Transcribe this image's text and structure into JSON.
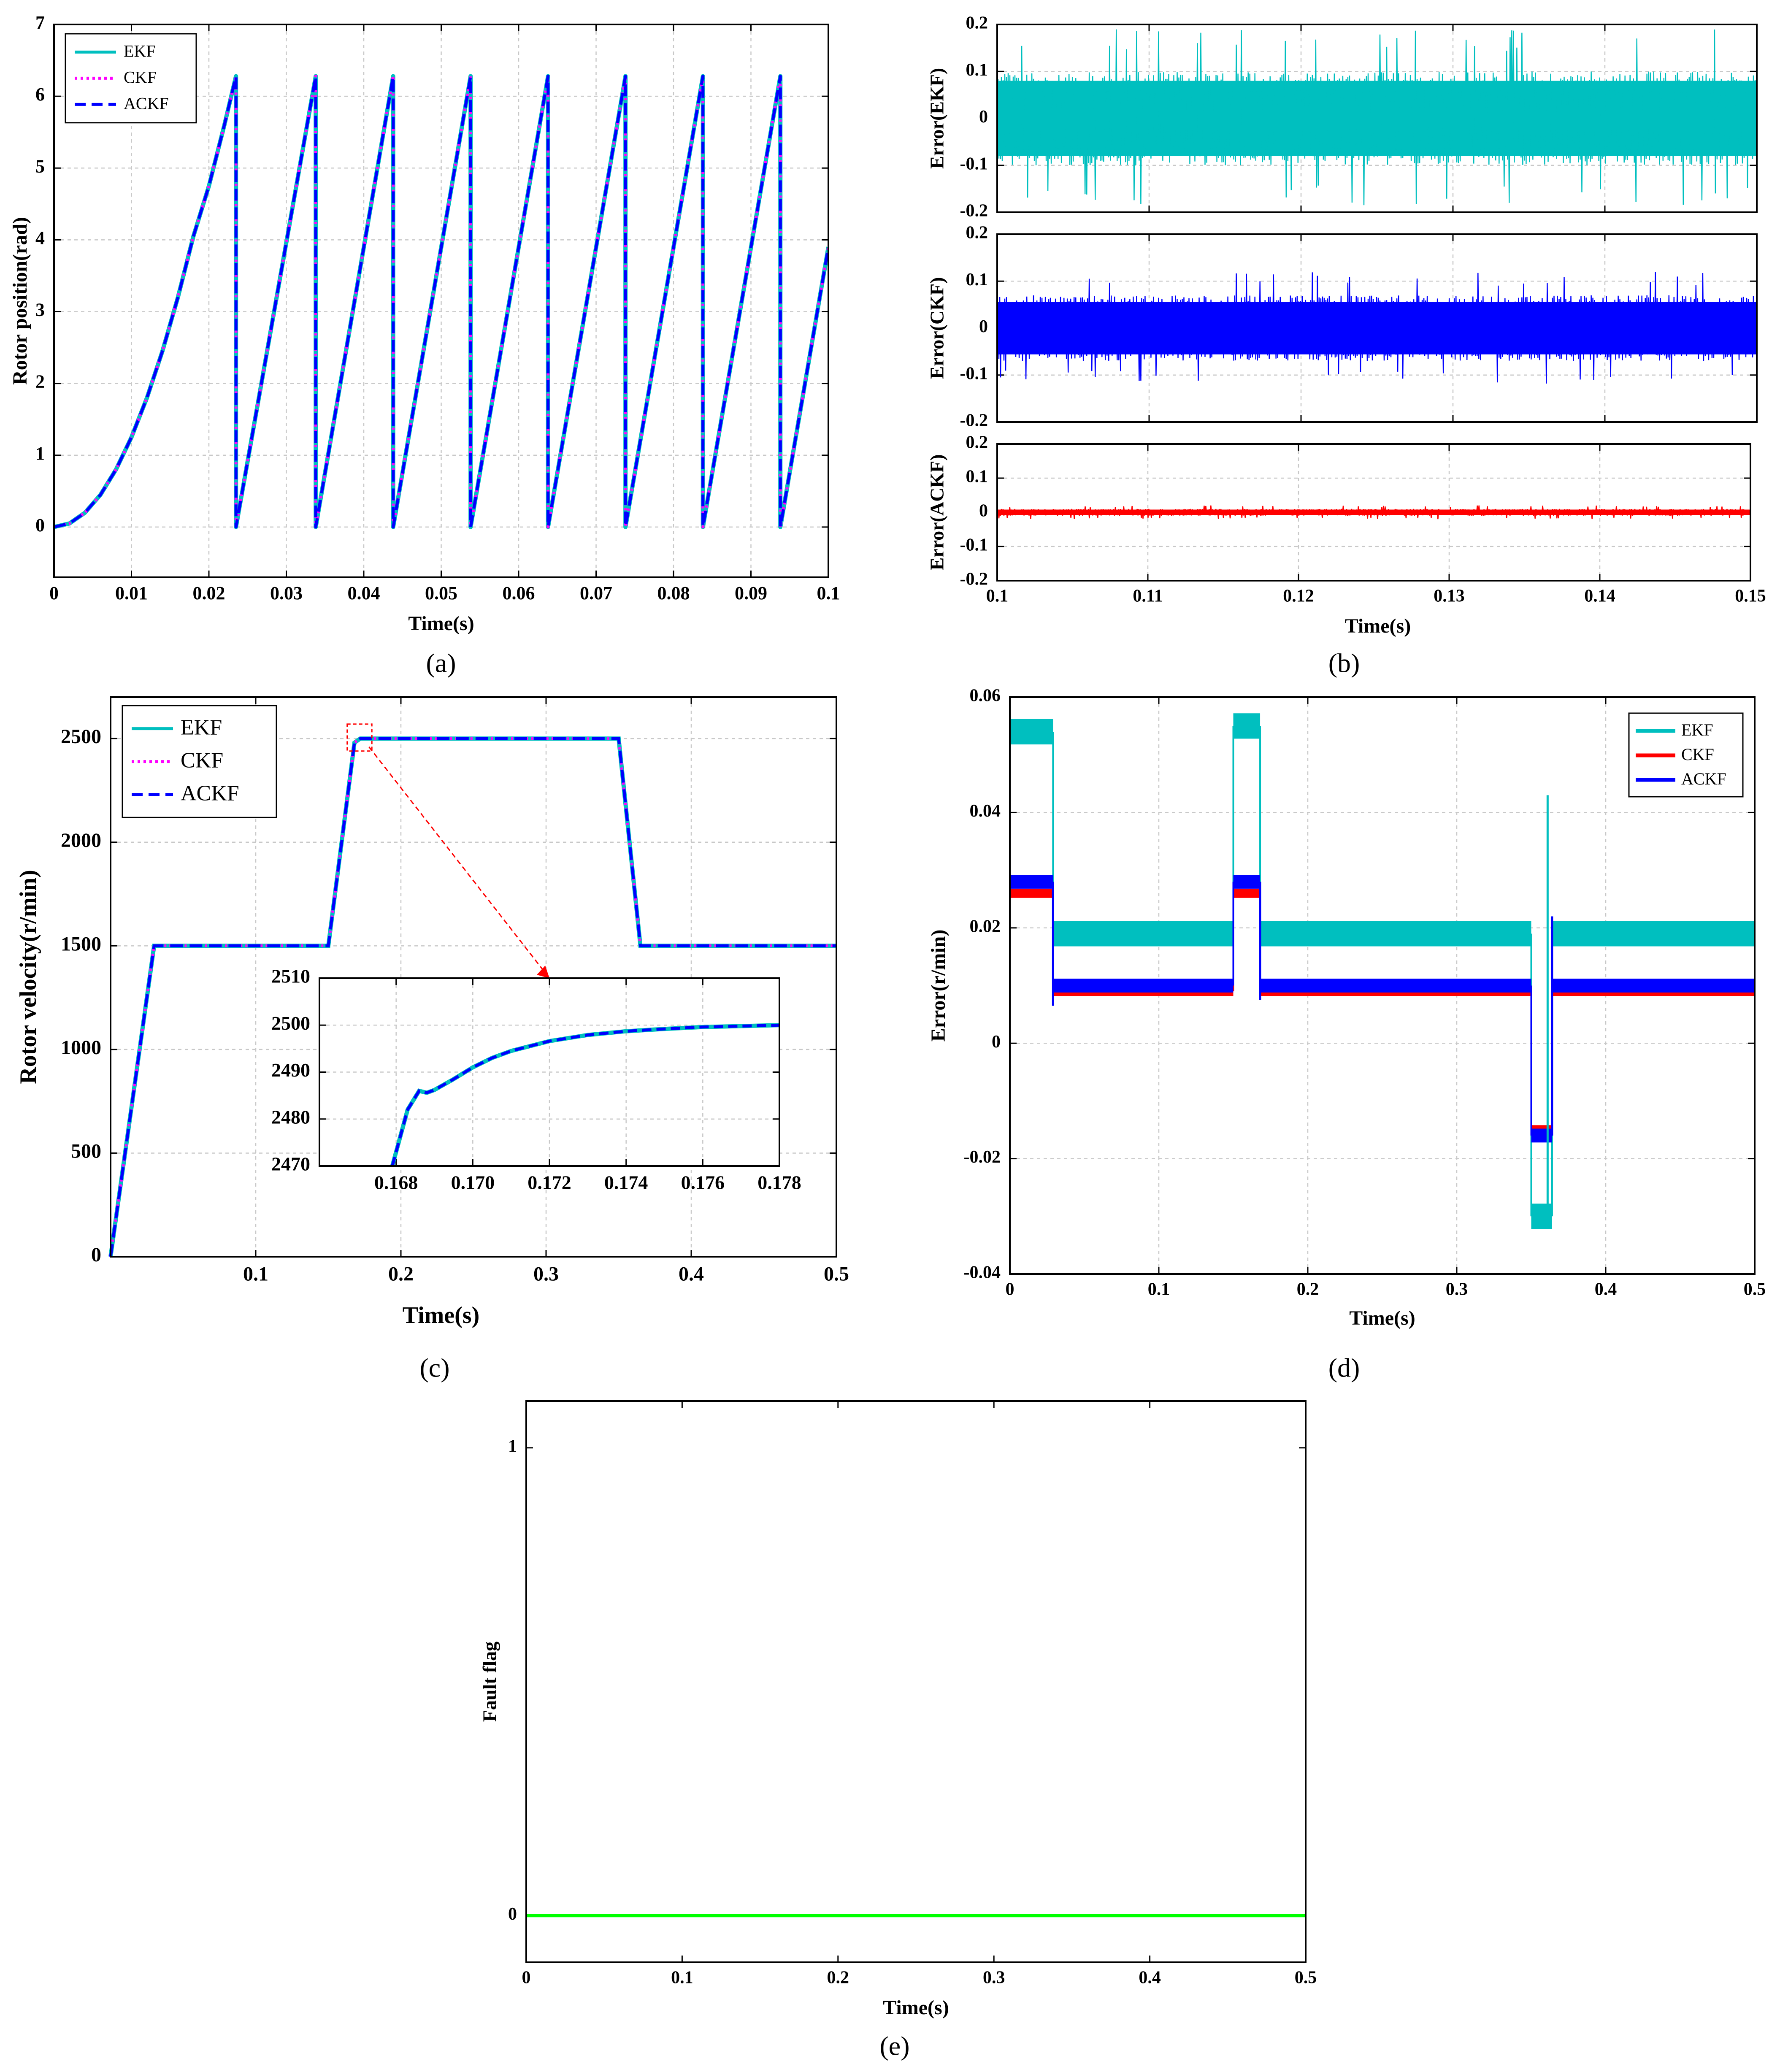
{
  "colors": {
    "ekf": "#00bfbf",
    "ckf": "#ff00ff",
    "ackf": "#0000ff",
    "ckf_error_d": "#ff0000",
    "ackf_error_b": "#ff0000",
    "fault_flag": "#00ff00",
    "grid": "#c8c8c8",
    "zoom_arrow": "#ff0000"
  },
  "chart_data": [
    {
      "id": "a",
      "panel_label": "(a)",
      "type": "line",
      "title": "",
      "xlabel": "Time(s)",
      "ylabel": "Rotor position(rad)",
      "xlim": [
        0,
        0.1
      ],
      "ylim": [
        -0.7,
        7
      ],
      "xticks": [
        0,
        0.01,
        0.02,
        0.03,
        0.04,
        0.05,
        0.06,
        0.07,
        0.08,
        0.09,
        0.1
      ],
      "xtick_labels": [
        "0",
        "0.01",
        "0.02",
        "0.03",
        "0.04",
        "0.05",
        "0.06",
        "0.07",
        "0.08",
        "0.09",
        "0.1"
      ],
      "yticks": [
        0,
        1,
        2,
        3,
        4,
        5,
        6,
        7
      ],
      "ytick_labels": [
        "0",
        "1",
        "2",
        "3",
        "4",
        "5",
        "6",
        "7"
      ],
      "grid": true,
      "legend": {
        "position": "top-left",
        "entries": [
          "EKF",
          "CKF",
          "ACKF"
        ]
      },
      "series": [
        {
          "name": "EKF",
          "style": "solid",
          "color": "#00bfbf"
        },
        {
          "name": "CKF",
          "style": "dotted",
          "color": "#ff00ff"
        },
        {
          "name": "ACKF",
          "style": "dashed",
          "color": "#0000ff"
        }
      ],
      "curve_points": {
        "x": [
          0,
          0.002,
          0.004,
          0.006,
          0.008,
          0.01,
          0.012,
          0.014,
          0.016,
          0.018,
          0.02,
          0.022,
          0.0235,
          0.0235,
          0.0338,
          0.0338,
          0.0438,
          0.0438,
          0.0538,
          0.0538,
          0.0638,
          0.0638,
          0.0738,
          0.0738,
          0.0838,
          0.0838,
          0.0938,
          0.0938,
          0.1
        ],
        "y": [
          0,
          0.05,
          0.2,
          0.45,
          0.8,
          1.25,
          1.8,
          2.45,
          3.2,
          4.05,
          4.75,
          5.6,
          6.28,
          0,
          6.28,
          0,
          6.28,
          0,
          6.28,
          0,
          6.28,
          0,
          6.28,
          0,
          6.28,
          0,
          6.28,
          0,
          3.9
        ]
      }
    },
    {
      "id": "b",
      "panel_label": "(b)",
      "type": "line",
      "title": "",
      "xlabel": "Time(s)",
      "xlim": [
        0.1,
        0.15
      ],
      "xticks": [
        0.1,
        0.11,
        0.12,
        0.13,
        0.14,
        0.15
      ],
      "xtick_labels": [
        "0.1",
        "0.11",
        "0.12",
        "0.13",
        "0.14",
        "0.15"
      ],
      "grid": true,
      "subplots": [
        {
          "ylabel": "Error(EKF)",
          "ylim": [
            -0.2,
            0.2
          ],
          "yticks": [
            -0.2,
            -0.1,
            0,
            0.1,
            0.2
          ],
          "ytick_labels": [
            "-0.2",
            "-0.1",
            "0",
            "0.1",
            "0.2"
          ],
          "series_name": "EKF",
          "color": "#00bfbf",
          "noise_band": 0.1,
          "noise_peak": 0.19
        },
        {
          "ylabel": "Error(CKF)",
          "ylim": [
            -0.2,
            0.2
          ],
          "yticks": [
            -0.2,
            -0.1,
            0,
            0.1,
            0.2
          ],
          "ytick_labels": [
            "-0.2",
            "-0.1",
            "0",
            "0.1",
            "0.2"
          ],
          "series_name": "CKF",
          "color": "#0000ff",
          "noise_band": 0.07,
          "noise_peak": 0.12
        },
        {
          "ylabel": "Error(ACKF)",
          "ylim": [
            -0.2,
            0.2
          ],
          "yticks": [
            -0.2,
            -0.1,
            0,
            0.1,
            0.2
          ],
          "ytick_labels": [
            "-0.2",
            "-0.1",
            "0",
            "0.1",
            "0.2"
          ],
          "series_name": "ACKF",
          "color": "#ff0000",
          "noise_band": 0.01,
          "noise_peak": 0.02
        }
      ]
    },
    {
      "id": "c",
      "panel_label": "(c)",
      "type": "line",
      "title": "",
      "xlabel": "Time(s)",
      "ylabel": "Rotor velocity(r/min)",
      "xlim": [
        0,
        0.5
      ],
      "ylim": [
        0,
        2700
      ],
      "xticks": [
        0.1,
        0.2,
        0.3,
        0.4,
        0.5
      ],
      "xtick_labels": [
        "0.1",
        "0.2",
        "0.3",
        "0.4",
        "0.5"
      ],
      "yticks": [
        0,
        500,
        1000,
        1500,
        2000,
        2500
      ],
      "ytick_labels": [
        "0",
        "500",
        "1000",
        "1500",
        "2000",
        "2500"
      ],
      "grid": true,
      "legend": {
        "position": "top-left",
        "entries": [
          "EKF",
          "CKF",
          "ACKF"
        ]
      },
      "series": [
        {
          "name": "EKF",
          "style": "solid",
          "color": "#00bfbf"
        },
        {
          "name": "CKF",
          "style": "dotted",
          "color": "#ff00ff"
        },
        {
          "name": "ACKF",
          "style": "dashed",
          "color": "#0000ff"
        }
      ],
      "curve_points": {
        "x": [
          0,
          0.03,
          0.15,
          0.168,
          0.172,
          0.35,
          0.365,
          0.5
        ],
        "y": [
          0,
          1500,
          1500,
          2480,
          2500,
          2500,
          1500,
          1500
        ]
      },
      "inset": {
        "xlim": [
          0.166,
          0.178
        ],
        "ylim": [
          2470,
          2510
        ],
        "xticks": [
          0.168,
          0.17,
          0.172,
          0.174,
          0.176,
          0.178
        ],
        "xtick_labels": [
          "0.168",
          "0.170",
          "0.172",
          "0.174",
          "0.176",
          "0.178"
        ],
        "yticks": [
          2470,
          2480,
          2490,
          2500,
          2510
        ],
        "ytick_labels": [
          "2470",
          "2480",
          "2490",
          "2500",
          "2510"
        ],
        "curve_points": {
          "x": [
            0.1679,
            0.1683,
            0.1686,
            0.1688,
            0.169,
            0.1695,
            0.17,
            0.1705,
            0.171,
            0.172,
            0.173,
            0.174,
            0.175,
            0.176,
            0.177,
            0.178
          ],
          "y": [
            2470,
            2482,
            2486,
            2485.6,
            2486.2,
            2488.5,
            2491,
            2493,
            2494.5,
            2496.6,
            2497.9,
            2498.7,
            2499.2,
            2499.6,
            2499.8,
            2500
          ]
        }
      }
    },
    {
      "id": "d",
      "panel_label": "(d)",
      "type": "line",
      "title": "",
      "xlabel": "Time(s)",
      "ylabel": "Error(r/min)",
      "xlim": [
        0,
        0.5
      ],
      "ylim": [
        -0.04,
        0.06
      ],
      "xticks": [
        0,
        0.1,
        0.2,
        0.3,
        0.4,
        0.5
      ],
      "xtick_labels": [
        "0",
        "0.1",
        "0.2",
        "0.3",
        "0.4",
        "0.5"
      ],
      "yticks": [
        -0.04,
        -0.02,
        0,
        0.02,
        0.04,
        0.06
      ],
      "ytick_labels": [
        "-0.04",
        "-0.02",
        "0",
        "0.02",
        "0.04",
        "0.06"
      ],
      "grid": true,
      "legend": {
        "position": "top-right",
        "entries": [
          "EKF",
          "CKF",
          "ACKF"
        ]
      },
      "series": [
        {
          "name": "EKF",
          "color": "#00bfbf",
          "segments": [
            {
              "x": [
                0,
                0.029
              ],
              "y": [
                0.054,
                0.054
              ]
            },
            {
              "x": [
                0.029,
                0.15
              ],
              "y": [
                0.019,
                0.019
              ]
            },
            {
              "x": [
                0.15,
                0.168
              ],
              "y": [
                0.055,
                0.055
              ]
            },
            {
              "x": [
                0.168,
                0.35
              ],
              "y": [
                0.019,
                0.019
              ]
            },
            {
              "x": [
                0.35,
                0.364
              ],
              "y": [
                -0.03,
                -0.03
              ]
            },
            {
              "x": [
                0.364,
                0.5
              ],
              "y": [
                0.019,
                0.019
              ]
            }
          ],
          "band": 0.0022
        },
        {
          "name": "CKF",
          "color": "#ff0000",
          "segments": [
            {
              "x": [
                0,
                0.029
              ],
              "y": [
                0.026,
                0.026
              ]
            },
            {
              "x": [
                0.029,
                0.15
              ],
              "y": [
                0.009,
                0.009
              ]
            },
            {
              "x": [
                0.15,
                0.168
              ],
              "y": [
                0.026,
                0.026
              ]
            },
            {
              "x": [
                0.168,
                0.35
              ],
              "y": [
                0.009,
                0.009
              ]
            },
            {
              "x": [
                0.35,
                0.364
              ],
              "y": [
                -0.015,
                -0.015
              ]
            },
            {
              "x": [
                0.364,
                0.5
              ],
              "y": [
                0.009,
                0.009
              ]
            }
          ],
          "band": 0.0008
        },
        {
          "name": "ACKF",
          "color": "#0000ff",
          "segments": [
            {
              "x": [
                0,
                0.029
              ],
              "y": [
                0.028,
                0.028
              ]
            },
            {
              "x": [
                0.029,
                0.15
              ],
              "y": [
                0.01,
                0.01
              ]
            },
            {
              "x": [
                0.15,
                0.168
              ],
              "y": [
                0.028,
                0.028
              ]
            },
            {
              "x": [
                0.168,
                0.35
              ],
              "y": [
                0.01,
                0.01
              ]
            },
            {
              "x": [
                0.35,
                0.364
              ],
              "y": [
                -0.016,
                -0.016
              ]
            },
            {
              "x": [
                0.364,
                0.5
              ],
              "y": [
                0.01,
                0.01
              ]
            }
          ],
          "band": 0.0012
        }
      ],
      "spikes": [
        {
          "series": "EKF",
          "x": 0.361,
          "y": 0.043
        },
        {
          "series": "ACKF",
          "x": 0.029,
          "y": 0.0065
        },
        {
          "series": "ACKF",
          "x": 0.168,
          "y": 0.0075
        },
        {
          "series": "ACKF",
          "x": 0.364,
          "y": 0.022
        }
      ]
    },
    {
      "id": "e",
      "panel_label": "(e)",
      "type": "line",
      "title": "",
      "xlabel": "Time(s)",
      "ylabel": "Fault flag",
      "xlim": [
        0,
        0.5
      ],
      "ylim": [
        -0.1,
        1.1
      ],
      "xticks": [
        0,
        0.1,
        0.2,
        0.3,
        0.4,
        0.5
      ],
      "xtick_labels": [
        "0",
        "0.1",
        "0.2",
        "0.3",
        "0.4",
        "0.5"
      ],
      "yticks": [
        0,
        1
      ],
      "ytick_labels": [
        "0",
        "1"
      ],
      "grid": false,
      "series": [
        {
          "name": "Fault flag",
          "color": "#00ff00",
          "x": [
            0,
            0.5
          ],
          "y": [
            0,
            0
          ]
        }
      ]
    }
  ]
}
